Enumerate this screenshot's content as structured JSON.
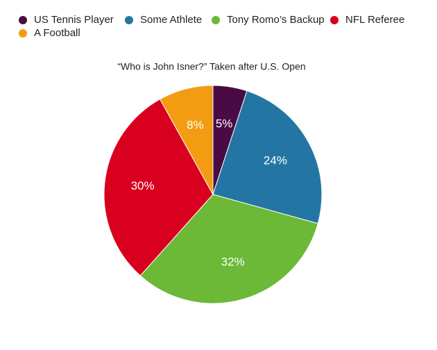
{
  "chart_data": {
    "type": "pie",
    "title": "“Who is John Isner?” Taken after U.S. Open",
    "categories": [
      "US Tennis Player",
      "Some Athlete",
      "Tony Romo’s Backup",
      "NFL Referee",
      "A Football"
    ],
    "values": [
      5,
      24,
      32,
      30,
      8
    ],
    "value_labels": [
      "5%",
      "24%",
      "32%",
      "30%",
      "8%"
    ],
    "colors": [
      "#4a0b45",
      "#2376a3",
      "#6bb936",
      "#d9001f",
      "#f39c12"
    ]
  }
}
